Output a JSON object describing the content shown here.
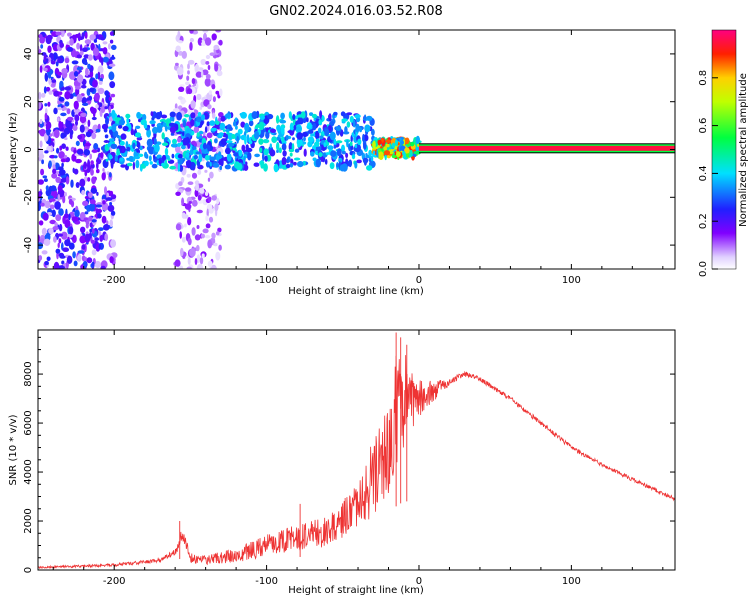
{
  "title": "GN02.2024.016.03.52.R08",
  "chart_data": [
    {
      "type": "heatmap",
      "xlabel": "Height of straight line (km)",
      "ylabel": "Frequency (Hz)",
      "xlim": [
        -250,
        168
      ],
      "ylim": [
        -50,
        50
      ],
      "x_ticks": [
        -200,
        -100,
        0,
        100
      ],
      "x_tick_labels": [
        "-200",
        "-100",
        "0",
        "100"
      ],
      "y_ticks": [
        -40,
        -20,
        0,
        20,
        40
      ],
      "y_tick_labels": [
        "-40",
        "-20",
        "0",
        "20",
        "40"
      ],
      "colorbar": {
        "label": "Normalized spectral amplitude",
        "range": [
          0,
          1
        ],
        "ticks": [
          0.0,
          0.2,
          0.4,
          0.6,
          0.8
        ],
        "tick_labels": [
          "0.0",
          "0.2",
          "0.4",
          "0.6",
          "0.8"
        ]
      },
      "tone_track": {
        "x_start": 0,
        "x_end": 168,
        "frequency": 0.5,
        "amplitude": 0.95
      },
      "scatter_regions": [
        {
          "x": [
            -250,
            -200
          ],
          "y": [
            -50,
            50
          ],
          "amplitude": [
            0.05,
            0.3
          ]
        },
        {
          "x": [
            -160,
            -130
          ],
          "y": [
            -50,
            50
          ],
          "amplitude": [
            0.02,
            0.15
          ]
        },
        {
          "x": [
            -205,
            -30
          ],
          "y": [
            -8,
            15
          ],
          "amplitude": [
            0.2,
            0.45
          ]
        },
        {
          "x": [
            -30,
            0
          ],
          "y": [
            -3,
            4
          ],
          "amplitude": [
            0.3,
            0.95
          ]
        }
      ]
    },
    {
      "type": "line",
      "xlabel": "Height of straight line (km)",
      "ylabel": "SNR (10 * v/v)",
      "xlim": [
        -250,
        168
      ],
      "ylim": [
        0,
        9800
      ],
      "x_ticks": [
        -200,
        -100,
        0,
        100
      ],
      "x_tick_labels": [
        "-200",
        "-100",
        "0",
        "100"
      ],
      "y_ticks": [
        0,
        2000,
        4000,
        6000,
        8000
      ],
      "y_tick_labels": [
        "0",
        "2000",
        "4000",
        "6000",
        "8000"
      ],
      "line_color": "#ee3333",
      "envelope": {
        "x": [
          -250,
          -200,
          -170,
          -160,
          -155,
          -150,
          -140,
          -120,
          -100,
          -80,
          -60,
          -40,
          -30,
          -20,
          -15,
          -10,
          0,
          10,
          20,
          30,
          40,
          60,
          80,
          100,
          120,
          140,
          168
        ],
        "y": [
          100,
          200,
          400,
          700,
          1400,
          500,
          400,
          600,
          1000,
          1300,
          1600,
          2600,
          3800,
          5000,
          6500,
          7000,
          7000,
          7300,
          7700,
          8000,
          7800,
          7000,
          6000,
          5000,
          4300,
          3700,
          2900
        ],
        "noise": [
          40,
          60,
          80,
          150,
          400,
          200,
          180,
          300,
          450,
          550,
          650,
          900,
          1600,
          2000,
          2300,
          2000,
          800,
          400,
          150,
          120,
          100,
          100,
          90,
          90,
          80,
          80,
          80
        ]
      },
      "spikes": [
        {
          "x": -157,
          "y": 2000
        },
        {
          "x": -78,
          "y": 2700
        },
        {
          "x": -15,
          "y": 9700
        },
        {
          "x": -12,
          "y": 9500
        },
        {
          "x": -8,
          "y": 9200
        }
      ]
    }
  ]
}
